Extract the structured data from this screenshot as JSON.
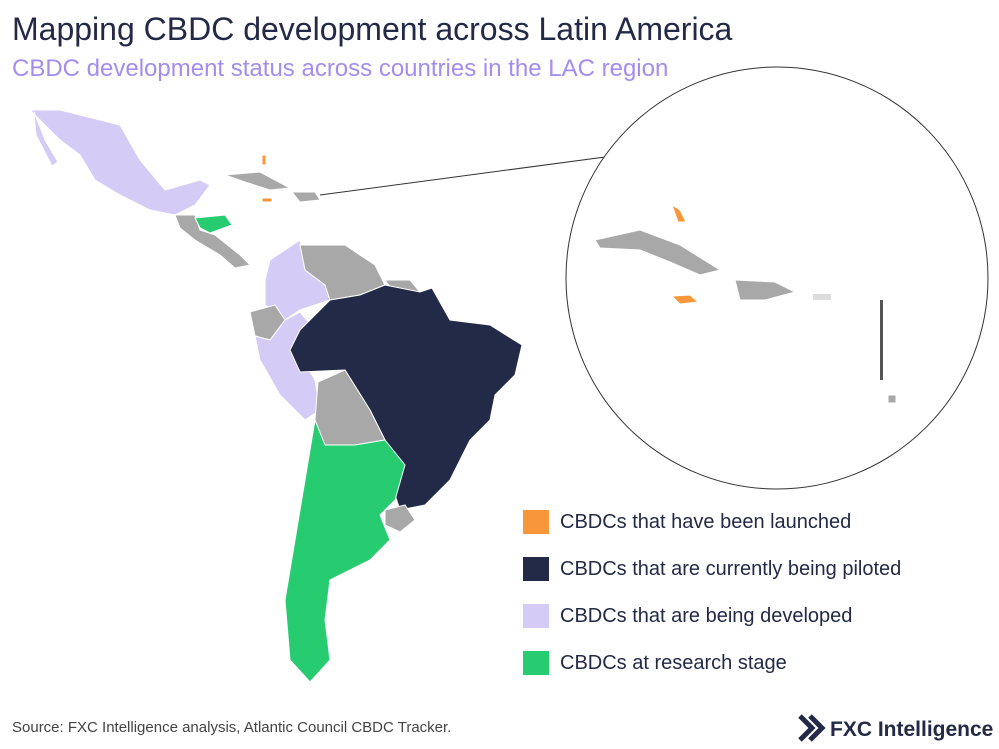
{
  "header": {
    "title": "Mapping CBDC development across Latin America",
    "subtitle": "CBDC development status across countries in the LAC region"
  },
  "legend": [
    {
      "label": "CBDCs that have been launched",
      "color": "#f7973a"
    },
    {
      "label": "CBDCs that are currently being piloted",
      "color": "#232a47"
    },
    {
      "label": "CBDCs that are being developed",
      "color": "#d5cbf7"
    },
    {
      "label": "CBDCs at research stage",
      "color": "#27cc70"
    }
  ],
  "footer": {
    "source": "Source: FXC Intelligence analysis, Atlantic Council CBDC Tracker.",
    "brand": "FXC Intelligence"
  }
}
